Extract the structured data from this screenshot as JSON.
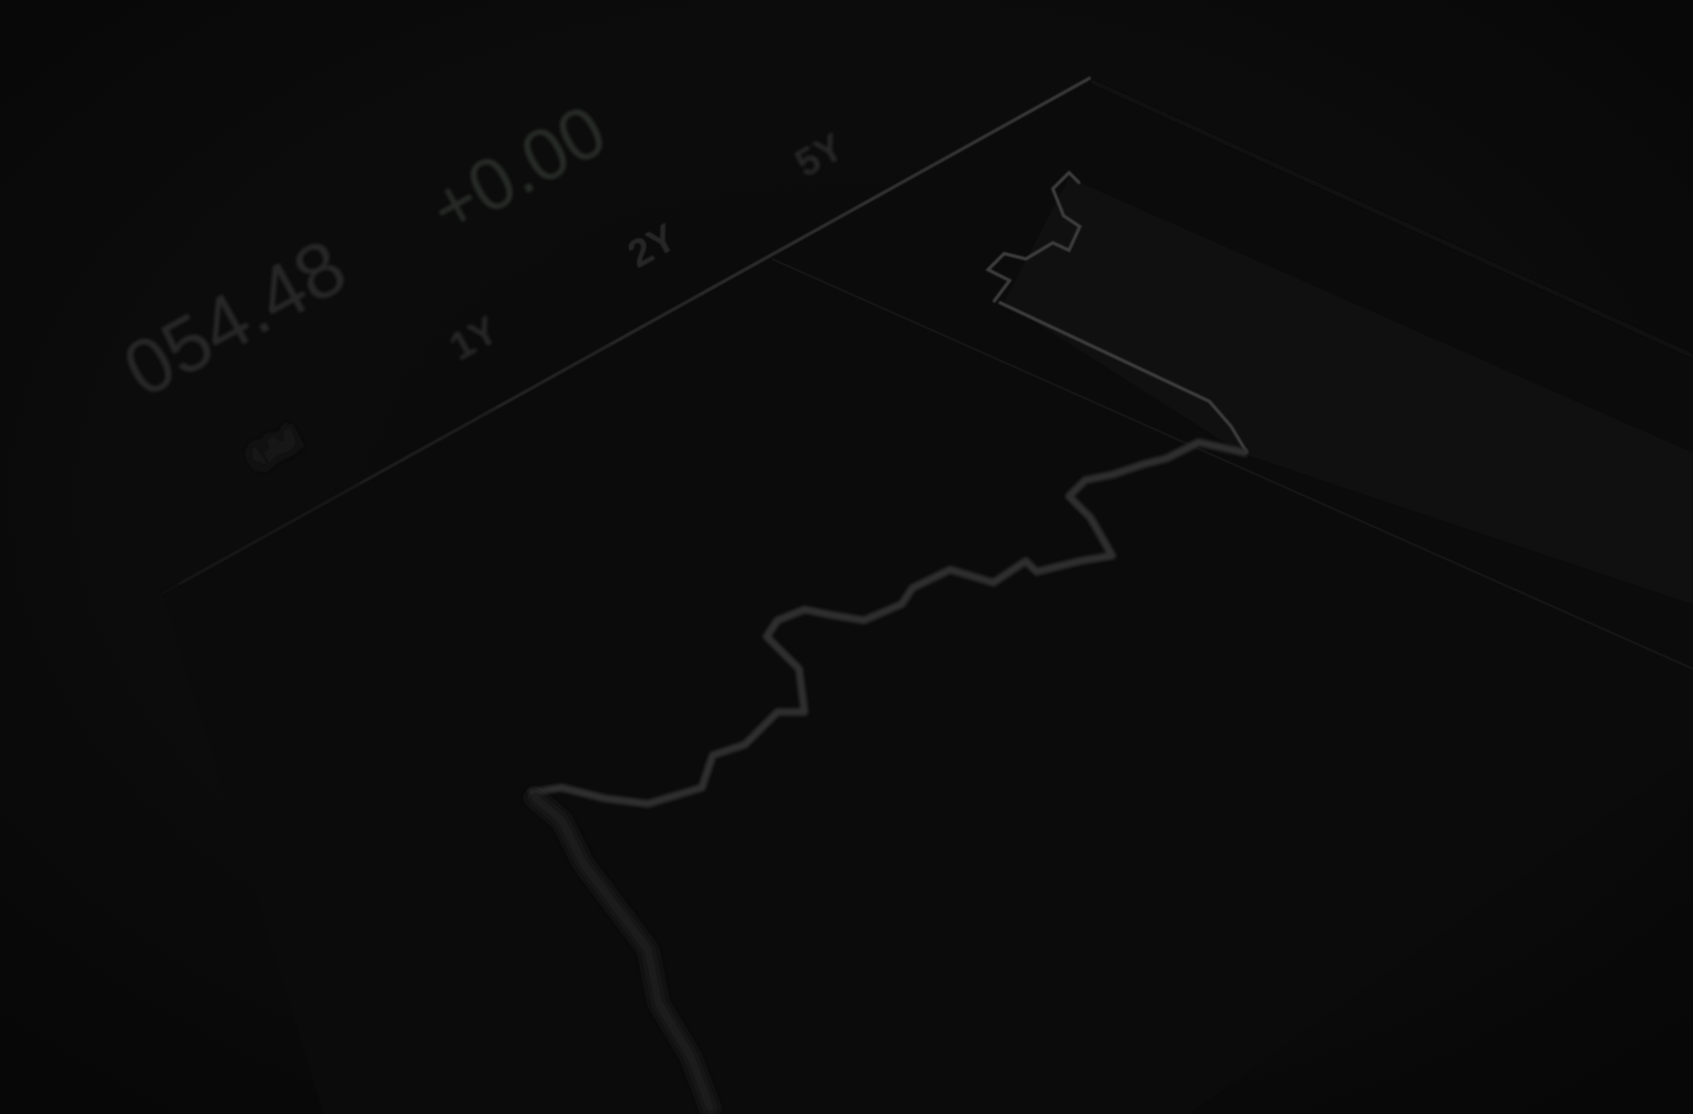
{
  "quote": {
    "price": "054.48",
    "change": "+0.00"
  },
  "ranges": [
    "6M",
    "1Y",
    "2Y",
    "5Y"
  ]
}
